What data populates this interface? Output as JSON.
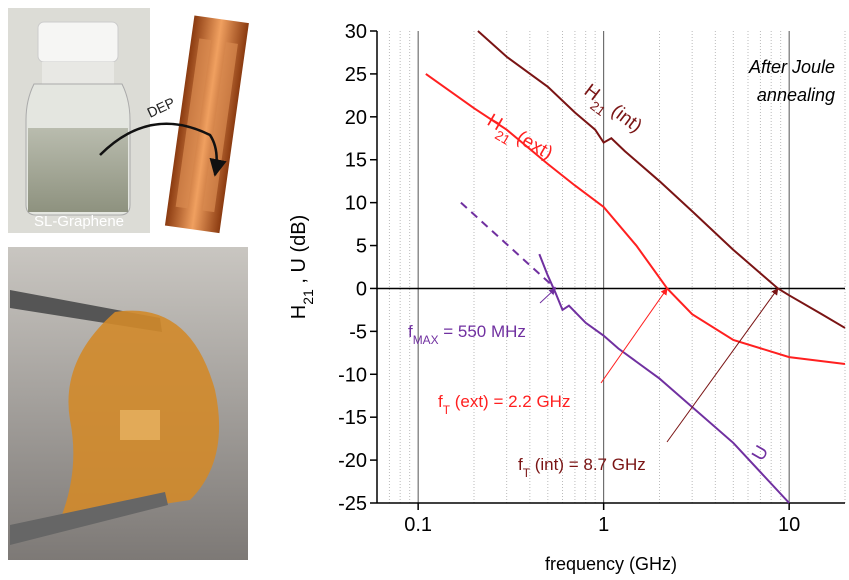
{
  "photos": {
    "vial_label": "SL-Graphene",
    "arrow_label": "DEP"
  },
  "chart_data": {
    "type": "line",
    "x_label": "frequency (GHz)",
    "y_label": [
      {
        "text": "H"
      },
      {
        "text": "21",
        "sub": true
      },
      {
        "text": " , U (dB)"
      }
    ],
    "xscale": "log",
    "xlim": [
      0.06,
      20
    ],
    "ylim": [
      -25,
      30
    ],
    "xticks": [
      0.1,
      1,
      10
    ],
    "yticks": [
      -25,
      -20,
      -15,
      -10,
      -5,
      0,
      5,
      10,
      15,
      20,
      25,
      30
    ],
    "grid": true,
    "minor_grid": true,
    "series": [
      {
        "name": [
          {
            "text": "H"
          },
          {
            "text": "21",
            "sub": true
          },
          {
            "text": " (int)"
          }
        ],
        "color": "#7a1414",
        "x": [
          0.21,
          0.3,
          0.5,
          0.7,
          0.9,
          1.0,
          1.1,
          1.3,
          2,
          3,
          5,
          8.7,
          10,
          15,
          20
        ],
        "values": [
          30,
          27,
          23.5,
          20.5,
          18.5,
          17,
          17.5,
          16,
          12.5,
          9,
          4.5,
          0,
          -0.8,
          -3,
          -4.6
        ]
      },
      {
        "name": [
          {
            "text": "H"
          },
          {
            "text": "21",
            "sub": true
          },
          {
            "text": " (ext)"
          }
        ],
        "color": "#ff2020",
        "x": [
          0.11,
          0.2,
          0.3,
          0.5,
          0.7,
          1,
          1.5,
          2.2,
          3,
          5,
          10,
          20
        ],
        "values": [
          25,
          21,
          18.5,
          14.5,
          12,
          9.5,
          5,
          0,
          -3,
          -6,
          -8,
          -8.8
        ]
      },
      {
        "name": [
          {
            "text": "U"
          }
        ],
        "color": "#7030a0",
        "x": [
          0.45,
          0.5,
          0.55,
          0.6,
          0.65,
          0.8,
          1,
          1.2,
          2,
          5,
          10
        ],
        "values": [
          4,
          1.5,
          -0.5,
          -2.5,
          -2,
          -4,
          -5.5,
          -7,
          -10.5,
          -18,
          -25
        ]
      },
      {
        "color": "#7030a0",
        "dash": true,
        "x": [
          0.17,
          0.55
        ],
        "values": [
          10,
          0
        ]
      }
    ],
    "annotations": [
      {
        "parts": [
          {
            "text": "f"
          },
          {
            "text": "MAX",
            "sub": true
          },
          {
            "text": " = 550 MHz"
          }
        ],
        "x": 0.55,
        "y": 0,
        "color": "#7030a0"
      },
      {
        "parts": [
          {
            "text": "f"
          },
          {
            "text": "T",
            "sub": true
          },
          {
            "text": " (ext) = 2.2 GHz"
          }
        ],
        "x": 2.2,
        "y": 0,
        "color": "#ff2020"
      },
      {
        "parts": [
          {
            "text": "f"
          },
          {
            "text": "T",
            "sub": true
          },
          {
            "text": " (int) = 8.7 GHz"
          }
        ],
        "x": 8.7,
        "y": 0,
        "color": "#7a1414"
      }
    ],
    "note": [
      "After Joule",
      "annealing"
    ]
  }
}
